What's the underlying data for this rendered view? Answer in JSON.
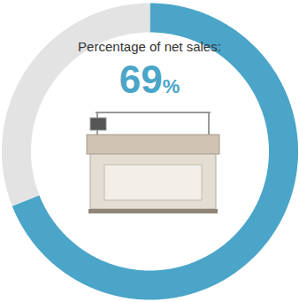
{
  "chart_data": {
    "type": "pie",
    "title": "Percentage of net sales:",
    "values": [
      69,
      31
    ],
    "colors": [
      "#4aa5c8",
      "#e3e3e3"
    ],
    "data_labels": true,
    "value_labels": [
      "69%",
      null
    ]
  }
}
